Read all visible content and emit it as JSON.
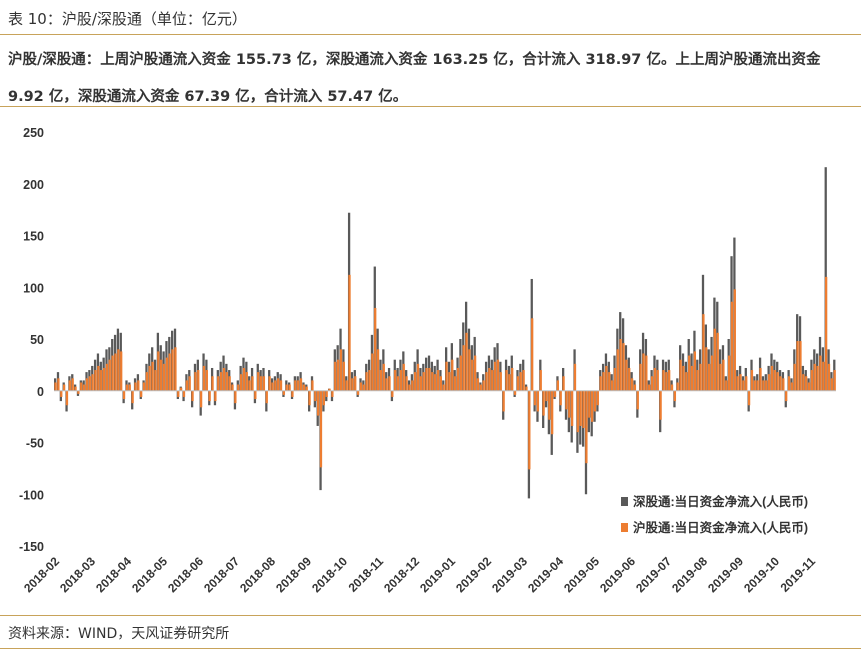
{
  "caption": "表 10：沪股/深股通（单位：亿元）",
  "summary": "沪股/深股通：上周沪股通流入资金 155.73 亿，深股通流入资金 163.25 亿，合计流入 318.97 亿。上上周沪股通流出资金 9.92 亿，深股通流入资金 67.39 亿，合计流入 57.47 亿。",
  "source": "资料来源：WIND，天风证券研究所",
  "colors": {
    "accent_rule": "#c8a35a",
    "series_sz": "#595959",
    "series_sh": "#ed7d31",
    "zero_line": "#bfbfbf"
  },
  "chart_data": {
    "type": "bar",
    "ylim": [
      -150,
      250
    ],
    "yticks": [
      "250",
      "200",
      "150",
      "100",
      "50",
      "0",
      "-50",
      "-100",
      "-150"
    ],
    "x_labels": [
      "2018-02",
      "2018-03",
      "2018-04",
      "2018-05",
      "2018-06",
      "2018-07",
      "2018-08",
      "2018-09",
      "2018-10",
      "2018-11",
      "2018-12",
      "2019-01",
      "2019-02",
      "2019-03",
      "2019-04",
      "2019-05",
      "2019-06",
      "2019-07",
      "2019-08",
      "2019-09",
      "2019-10",
      "2019-11"
    ],
    "legend": [
      "深股通:当日资金净流入(人民币)",
      "沪股通:当日资金净流入(人民币)"
    ],
    "series": [
      {
        "name": "深股通:当日资金净流入(人民币)",
        "values": [
          12,
          18,
          -10,
          8,
          -20,
          14,
          16,
          6,
          -5,
          10,
          10,
          18,
          20,
          24,
          30,
          36,
          28,
          32,
          40,
          42,
          50,
          54,
          60,
          56,
          -12,
          10,
          8,
          -18,
          12,
          16,
          -8,
          10,
          26,
          36,
          42,
          30,
          56,
          44,
          38,
          48,
          52,
          58,
          60,
          -8,
          4,
          -10,
          16,
          20,
          -16,
          26,
          30,
          -24,
          36,
          30,
          -14,
          22,
          -14,
          20,
          28,
          34,
          26,
          20,
          8,
          -18,
          10,
          24,
          32,
          28,
          14,
          22,
          -12,
          26,
          20,
          22,
          -20,
          20,
          12,
          14,
          18,
          16,
          -6,
          10,
          8,
          -8,
          14,
          14,
          18,
          8,
          6,
          -20,
          14,
          -16,
          -34,
          -96,
          -20,
          -10,
          2,
          -10,
          40,
          44,
          60,
          40,
          14,
          172,
          18,
          20,
          -6,
          12,
          10,
          26,
          30,
          54,
          120,
          60,
          30,
          40,
          18,
          22,
          -10,
          30,
          22,
          30,
          38,
          20,
          10,
          16,
          28,
          40,
          22,
          26,
          32,
          34,
          28,
          24,
          30,
          20,
          10,
          42,
          28,
          46,
          20,
          32,
          50,
          66,
          86,
          60,
          44,
          52,
          18,
          8,
          16,
          28,
          34,
          30,
          42,
          46,
          28,
          -28,
          30,
          24,
          34,
          -6,
          20,
          26,
          30,
          6,
          -104,
          108,
          -20,
          -30,
          30,
          -36,
          -16,
          -42,
          -62,
          -8,
          14,
          -20,
          22,
          -28,
          -40,
          -50,
          40,
          -60,
          -52,
          -54,
          -100,
          -40,
          -44,
          -30,
          -20,
          20,
          26,
          36,
          28,
          16,
          34,
          60,
          76,
          70,
          44,
          32,
          18,
          10,
          -26,
          40,
          56,
          50,
          10,
          20,
          34,
          30,
          -40,
          30,
          28,
          30,
          10,
          -16,
          12,
          44,
          36,
          28,
          50,
          36,
          58,
          30,
          40,
          112,
          64,
          40,
          52,
          90,
          86,
          40,
          44,
          14,
          50,
          130,
          148,
          20,
          24,
          14,
          22,
          -20,
          30,
          14,
          16,
          32,
          14,
          16,
          24,
          36,
          30,
          28,
          20,
          18,
          -16,
          20,
          12,
          40,
          74,
          72,
          24,
          20,
          12,
          30,
          40,
          36,
          52,
          42,
          216,
          40,
          18,
          30
        ]
      },
      {
        "name": "沪股通:当日资金净流入(人民币)",
        "values": [
          8,
          12,
          -6,
          6,
          -14,
          10,
          12,
          4,
          -3,
          8,
          6,
          12,
          14,
          16,
          20,
          24,
          20,
          22,
          26,
          30,
          34,
          36,
          40,
          38,
          -8,
          6,
          6,
          -12,
          8,
          10,
          -6,
          8,
          18,
          24,
          28,
          20,
          38,
          30,
          26,
          32,
          36,
          40,
          42,
          -6,
          3,
          -6,
          10,
          14,
          -10,
          18,
          20,
          -16,
          24,
          20,
          -10,
          14,
          -10,
          14,
          18,
          22,
          18,
          14,
          6,
          -12,
          6,
          16,
          22,
          18,
          10,
          14,
          -8,
          18,
          14,
          14,
          -12,
          14,
          8,
          10,
          12,
          10,
          -4,
          6,
          6,
          -6,
          10,
          10,
          12,
          6,
          4,
          -14,
          10,
          -10,
          -24,
          -74,
          -14,
          -6,
          2,
          -6,
          28,
          30,
          40,
          28,
          10,
          112,
          12,
          14,
          -4,
          8,
          6,
          18,
          20,
          36,
          80,
          40,
          20,
          26,
          12,
          14,
          -6,
          20,
          14,
          20,
          26,
          14,
          6,
          10,
          18,
          26,
          14,
          18,
          22,
          22,
          18,
          16,
          20,
          14,
          6,
          28,
          18,
          30,
          14,
          22,
          34,
          44,
          56,
          40,
          30,
          34,
          12,
          6,
          10,
          18,
          22,
          20,
          28,
          30,
          18,
          -20,
          20,
          16,
          22,
          -4,
          14,
          18,
          20,
          4,
          -76,
          70,
          -14,
          -20,
          20,
          -24,
          -10,
          -28,
          -42,
          -6,
          10,
          -14,
          14,
          -18,
          -26,
          -34,
          26,
          -40,
          -34,
          -36,
          -70,
          -26,
          -30,
          -20,
          -14,
          14,
          18,
          24,
          18,
          10,
          22,
          40,
          50,
          46,
          30,
          22,
          12,
          6,
          -18,
          26,
          36,
          34,
          6,
          14,
          22,
          20,
          -28,
          20,
          18,
          20,
          6,
          -10,
          8,
          30,
          24,
          18,
          34,
          24,
          38,
          20,
          26,
          74,
          42,
          26,
          34,
          60,
          56,
          26,
          30,
          10,
          34,
          86,
          98,
          14,
          16,
          10,
          14,
          -14,
          20,
          10,
          10,
          22,
          10,
          10,
          16,
          24,
          20,
          18,
          14,
          12,
          -10,
          14,
          8,
          26,
          48,
          48,
          16,
          14,
          8,
          20,
          26,
          24,
          34,
          28,
          110,
          26,
          12,
          20
        ]
      }
    ]
  }
}
